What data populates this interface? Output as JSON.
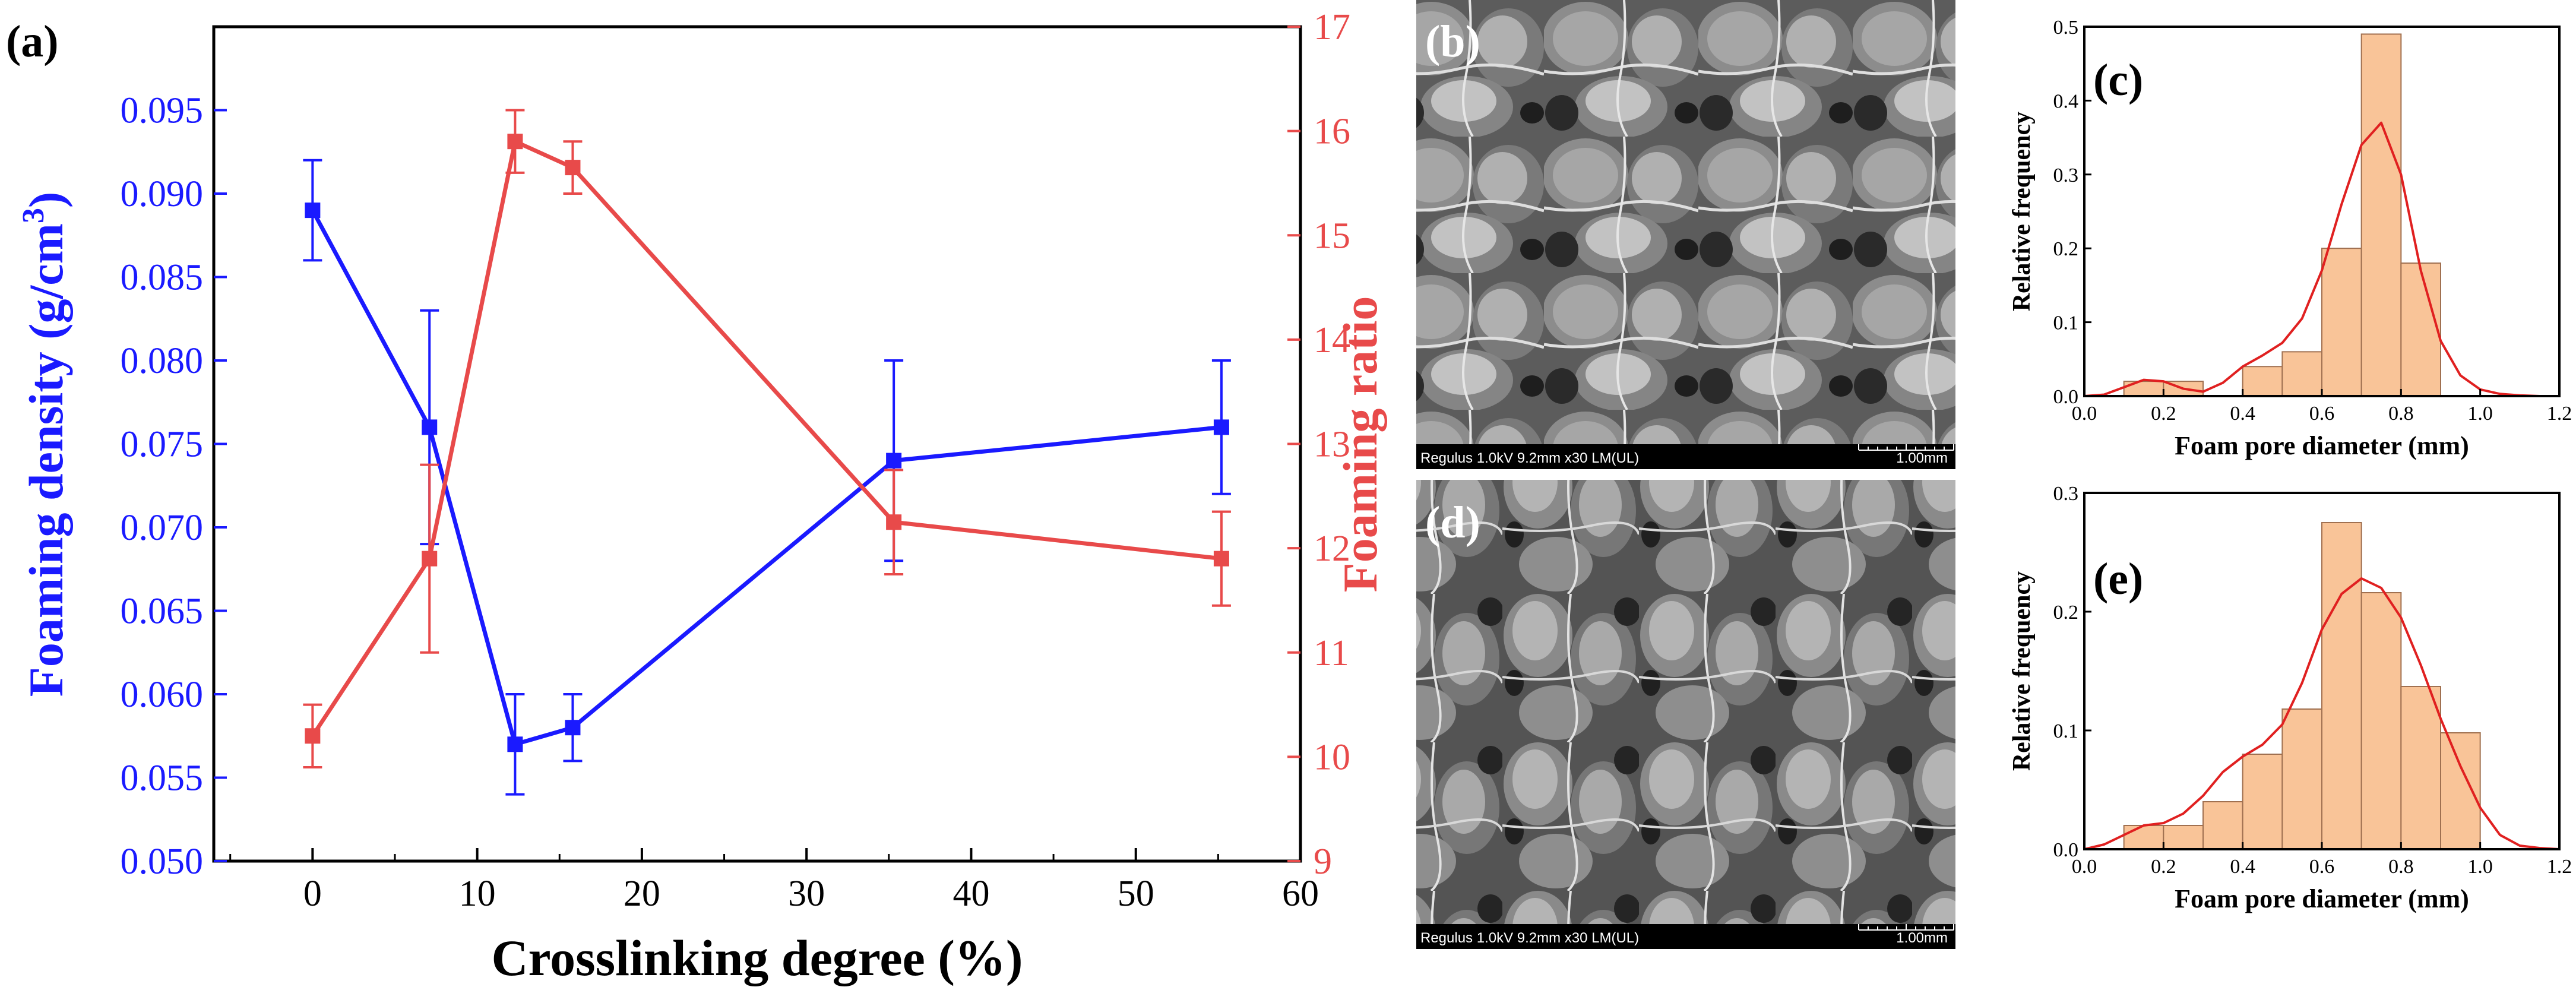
{
  "colors": {
    "blue": "#1a1aff",
    "red": "#e84a4a",
    "bar_fill": "#f9c498",
    "bar_stroke": "#a07050",
    "hist_curve": "#e02020",
    "sem_bar": "#000000"
  },
  "panel_a": {
    "label": "(a)",
    "chart_data": {
      "type": "line",
      "xlabel": "Crosslinking degree (%)",
      "xlim": [
        -6,
        60
      ],
      "xticks": [
        0,
        10,
        20,
        30,
        40,
        50,
        60
      ],
      "left_axis": {
        "label": "Foaming density (g/cm",
        "label_sup": "3",
        "label_end": ")",
        "ylim": [
          0.05,
          0.1
        ],
        "ticks": [
          "0.050",
          "0.055",
          "0.060",
          "0.065",
          "0.070",
          "0.075",
          "0.080",
          "0.085",
          "0.090",
          "0.095"
        ]
      },
      "right_axis": {
        "label": "Foaming ratio",
        "ylim": [
          9,
          17
        ],
        "ticks": [
          "9",
          "10",
          "11",
          "12",
          "13",
          "14",
          "15",
          "16",
          "17"
        ]
      },
      "series": [
        {
          "name": "Foaming density",
          "axis": "left",
          "color": "#1a1aff",
          "x": [
            0,
            7.1,
            12.3,
            15.8,
            35.3,
            55.2
          ],
          "y": [
            0.089,
            0.076,
            0.057,
            0.058,
            0.074,
            0.076
          ],
          "err": [
            0.003,
            0.007,
            0.003,
            0.002,
            0.006,
            0.004
          ]
        },
        {
          "name": "Foaming ratio",
          "axis": "right",
          "color": "#e84a4a",
          "x": [
            0,
            7.1,
            12.3,
            15.8,
            35.3,
            55.2
          ],
          "y": [
            10.2,
            11.9,
            15.9,
            15.65,
            12.25,
            11.9
          ],
          "err": [
            0.3,
            0.9,
            0.3,
            0.25,
            0.5,
            0.45
          ]
        }
      ]
    }
  },
  "panel_b": {
    "label": "(b)",
    "caption_left": "Regulus 1.0kV 9.2mm x30 LM(UL)",
    "caption_right": "1.00mm"
  },
  "panel_d": {
    "label": "(d)",
    "caption_left": "Regulus 1.0kV 9.2mm x30 LM(UL)",
    "caption_right": "1.00mm"
  },
  "panel_c": {
    "label": "(c)",
    "chart_data": {
      "type": "bar",
      "xlabel": "Foam pore diameter (mm)",
      "ylabel": "Relative frequency",
      "xlim": [
        0,
        1.2
      ],
      "ylim": [
        0,
        0.5
      ],
      "xticks": [
        "0.0",
        "0.2",
        "0.4",
        "0.6",
        "0.8",
        "1.0",
        "1.2"
      ],
      "yticks": [
        "0.0",
        "0.1",
        "0.2",
        "0.3",
        "0.4",
        "0.5"
      ],
      "bin_width": 0.1,
      "bin_starts": [
        0.1,
        0.2,
        0.3,
        0.4,
        0.5,
        0.6,
        0.7,
        0.8
      ],
      "values": [
        0.02,
        0.02,
        0.0,
        0.04,
        0.06,
        0.2,
        0.49,
        0.18
      ],
      "curve_x": [
        0.0,
        0.05,
        0.1,
        0.15,
        0.2,
        0.25,
        0.3,
        0.35,
        0.4,
        0.45,
        0.5,
        0.55,
        0.6,
        0.65,
        0.7,
        0.75,
        0.8,
        0.85,
        0.9,
        0.95,
        1.0,
        1.05,
        1.1,
        1.15,
        1.2
      ],
      "curve_y": [
        0.0,
        0.002,
        0.012,
        0.022,
        0.02,
        0.01,
        0.006,
        0.018,
        0.04,
        0.055,
        0.072,
        0.105,
        0.17,
        0.26,
        0.34,
        0.37,
        0.3,
        0.17,
        0.075,
        0.028,
        0.009,
        0.003,
        0.001,
        0.0,
        0.0
      ]
    }
  },
  "panel_e": {
    "label": "(e)",
    "chart_data": {
      "type": "bar",
      "xlabel": "Foam pore diameter (mm)",
      "ylabel": "Relative frequency",
      "xlim": [
        0,
        1.2
      ],
      "ylim": [
        0,
        0.3
      ],
      "xticks": [
        "0.0",
        "0.2",
        "0.4",
        "0.6",
        "0.8",
        "1.0",
        "1.2"
      ],
      "yticks": [
        "0.0",
        "0.1",
        "0.2",
        "0.3"
      ],
      "bin_width": 0.1,
      "bin_starts": [
        0.1,
        0.2,
        0.3,
        0.4,
        0.5,
        0.6,
        0.7,
        0.8,
        0.9
      ],
      "values": [
        0.02,
        0.02,
        0.04,
        0.08,
        0.118,
        0.275,
        0.216,
        0.137,
        0.098
      ],
      "curve_x": [
        0.0,
        0.05,
        0.1,
        0.15,
        0.2,
        0.25,
        0.3,
        0.35,
        0.4,
        0.45,
        0.5,
        0.55,
        0.6,
        0.65,
        0.7,
        0.75,
        0.8,
        0.85,
        0.9,
        0.95,
        1.0,
        1.05,
        1.1,
        1.15,
        1.2
      ],
      "curve_y": [
        0.0,
        0.004,
        0.012,
        0.02,
        0.022,
        0.03,
        0.045,
        0.065,
        0.078,
        0.088,
        0.105,
        0.14,
        0.185,
        0.215,
        0.228,
        0.22,
        0.195,
        0.155,
        0.11,
        0.07,
        0.035,
        0.012,
        0.003,
        0.001,
        0.0
      ]
    }
  }
}
